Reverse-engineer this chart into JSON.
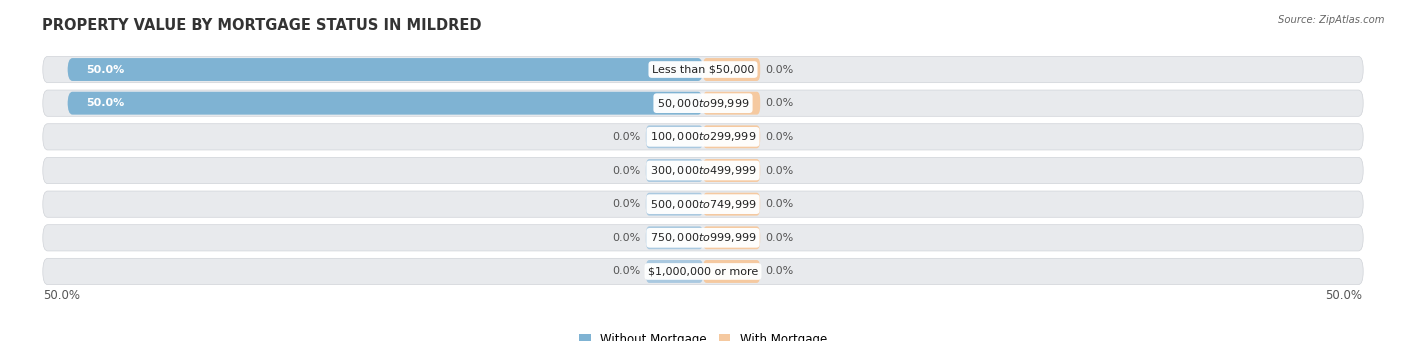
{
  "title": "PROPERTY VALUE BY MORTGAGE STATUS IN MILDRED",
  "source": "Source: ZipAtlas.com",
  "categories": [
    "Less than $50,000",
    "$50,000 to $99,999",
    "$100,000 to $299,999",
    "$300,000 to $499,999",
    "$500,000 to $749,999",
    "$750,000 to $999,999",
    "$1,000,000 or more"
  ],
  "without_mortgage": [
    50.0,
    50.0,
    0.0,
    0.0,
    0.0,
    0.0,
    0.0
  ],
  "with_mortgage": [
    0.0,
    0.0,
    0.0,
    0.0,
    0.0,
    0.0,
    0.0
  ],
  "without_mortgage_color": "#7fb3d3",
  "with_mortgage_color": "#f5c9a0",
  "row_bg_color": "#e8eaed",
  "row_border_color": "#d0d3d8",
  "stub_color_left": "#aac9e0",
  "stub_color_right": "#f5c9a0",
  "max_val": 50.0,
  "stub_size": 4.5,
  "x_left_label": "50.0%",
  "x_right_label": "50.0%",
  "title_fontsize": 10.5,
  "label_fontsize": 8.0,
  "cat_fontsize": 8.0,
  "tick_fontsize": 8.5,
  "legend_fontsize": 8.5
}
